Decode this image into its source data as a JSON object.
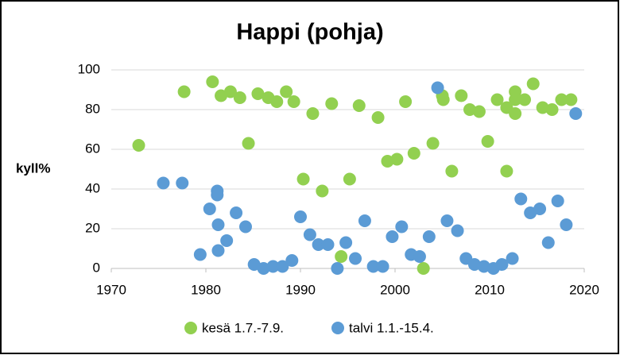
{
  "chart_data": {
    "type": "scatter",
    "title": "Happi (pohja)",
    "y_label": "kyll%",
    "xlim": [
      1970,
      2020
    ],
    "xticks": [
      1970,
      1980,
      1990,
      2000,
      2010,
      2020
    ],
    "ylim": [
      0,
      100
    ],
    "yticks": [
      0,
      20,
      40,
      60,
      80,
      100
    ],
    "grid": true,
    "legend": "bottom",
    "series": [
      {
        "name": "kesä 1.7.-7.9.",
        "color": "#92d050",
        "x": [
          1972.9,
          1977.7,
          1980.7,
          1981.6,
          1982.6,
          1983.6,
          1984.5,
          1985.5,
          1986.6,
          1987.5,
          1988.5,
          1989.3,
          1990.3,
          1991.3,
          1992.3,
          1993.3,
          1994.3,
          1995.2,
          1996.2,
          1998.2,
          1999.2,
          2000.2,
          2001.1,
          2002.0,
          2003.0,
          2004.0,
          2005.0,
          2005.1,
          2006.0,
          2007.0,
          2007.9,
          2008.9,
          2009.8,
          2010.8,
          2011.8,
          2011.8,
          2012.7,
          2012.7,
          2012.7,
          2013.7,
          2014.6,
          2015.6,
          2016.6,
          2017.6,
          2018.6
        ],
        "values": [
          62,
          89,
          94,
          87,
          89,
          86,
          63,
          88,
          86,
          84,
          89,
          84,
          45,
          78,
          39,
          83,
          6,
          45,
          82,
          76,
          54,
          55,
          84,
          58,
          0,
          63,
          87,
          85,
          49,
          87,
          80,
          79,
          64,
          85,
          81,
          49,
          89,
          85,
          78,
          85,
          93,
          81,
          80,
          85,
          85
        ]
      },
      {
        "name": "talvi 1.1.-15.4.",
        "color": "#5b9bd5",
        "x": [
          1975.5,
          1977.5,
          1979.4,
          1980.4,
          1981.2,
          1981.2,
          1981.3,
          1981.3,
          1982.2,
          1983.2,
          1984.2,
          1985.1,
          1986.1,
          1987.1,
          1988.1,
          1989.1,
          1990.0,
          1991.0,
          1991.9,
          1992.9,
          1993.9,
          1994.8,
          1995.8,
          1996.8,
          1997.7,
          1998.7,
          1999.7,
          2000.7,
          2001.7,
          2002.6,
          2003.6,
          2004.5,
          2005.5,
          2006.6,
          2007.5,
          2008.4,
          2009.4,
          2010.4,
          2011.3,
          2012.4,
          2013.3,
          2014.3,
          2015.3,
          2016.2,
          2017.2,
          2018.1,
          2019.1
        ],
        "values": [
          43,
          43,
          7,
          30,
          39,
          37,
          22,
          9,
          14,
          28,
          21,
          2,
          0,
          1,
          1,
          4,
          26,
          17,
          12,
          12,
          0,
          13,
          5,
          24,
          1,
          1,
          16,
          21,
          7,
          6,
          16,
          91,
          24,
          19,
          5,
          2,
          1,
          0,
          2,
          5,
          35,
          28,
          30,
          13,
          34,
          22,
          78
        ]
      }
    ]
  }
}
